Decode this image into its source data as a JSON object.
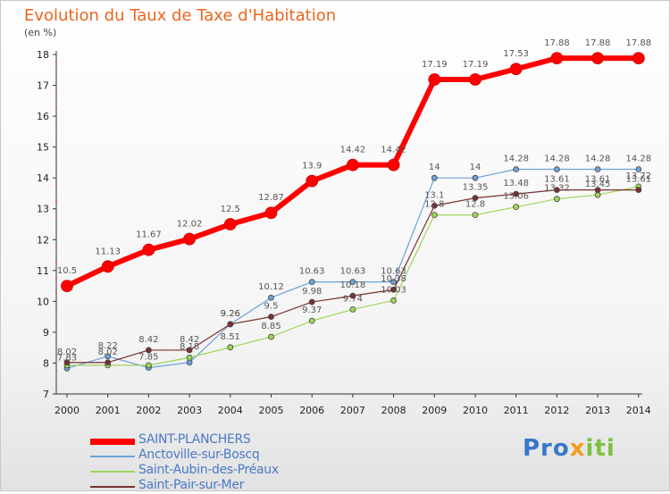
{
  "title": "Evolution du Taux de Taxe d'Habitation",
  "unit": "(en %)",
  "logo": {
    "p1": "Pro",
    "p2": "x",
    "p3": "iti"
  },
  "chart_data": {
    "type": "line",
    "x": [
      "2000",
      "2001",
      "2002",
      "2003",
      "2004",
      "2005",
      "2006",
      "2007",
      "2008",
      "2009",
      "2010",
      "2011",
      "2012",
      "2013",
      "2014"
    ],
    "ylim": [
      7,
      18
    ],
    "yticks": [
      "7",
      "8",
      "9",
      "10",
      "11",
      "12",
      "13",
      "14",
      "15",
      "16",
      "17",
      "18"
    ],
    "grid": false,
    "legend_position": "bottom-left",
    "series": [
      {
        "name": "SAINT-PLANCHERS",
        "color": "#ff0000",
        "width": 6,
        "marker": 6.5,
        "values": [
          10.5,
          11.13,
          11.67,
          12.02,
          12.5,
          12.87,
          13.9,
          14.42,
          14.42,
          17.19,
          17.19,
          17.53,
          17.88,
          17.88,
          17.88
        ],
        "labels": [
          "10.5",
          "11.13",
          "11.67",
          "12.02",
          "12.5",
          "12.87",
          "13.9",
          "14.42",
          "14.42",
          "17.19",
          "17.19",
          "17.53",
          "17.88",
          "17.88",
          "17.88"
        ]
      },
      {
        "name": "Anctoville-sur-Boscq",
        "color": "#6ea1d8",
        "width": 1.2,
        "marker": 3,
        "values": [
          7.83,
          8.22,
          7.85,
          8.02,
          9.26,
          10.12,
          10.63,
          10.63,
          10.63,
          14,
          14,
          14.28,
          14.28,
          14.28,
          14.28
        ],
        "labels": [
          "7.83",
          "8.22",
          "7.85",
          "",
          "9.26",
          "10.12",
          "10.63",
          "10.63",
          "10.63",
          "14",
          "14",
          "14.28",
          "14.28",
          "14.28",
          "14.28"
        ]
      },
      {
        "name": "Saint-Aubin-des-Préaux",
        "color": "#9ed65a",
        "width": 1.2,
        "marker": 3,
        "values": [
          7.93,
          7.93,
          7.93,
          8.18,
          8.51,
          8.85,
          9.37,
          9.74,
          10.03,
          12.8,
          12.8,
          13.06,
          13.32,
          13.45,
          13.72
        ],
        "labels": [
          "",
          "",
          "",
          "8.18",
          "8.51",
          "8.85",
          "9.37",
          "9.74",
          "10.03",
          "12.8",
          "12.8",
          "13.06",
          "13.32",
          "13.45",
          "13.72"
        ]
      },
      {
        "name": "Saint-Pair-sur-Mer",
        "color": "#7a3030",
        "width": 1.2,
        "marker": 3,
        "values": [
          8.02,
          8.02,
          8.42,
          8.42,
          9.26,
          9.5,
          9.98,
          10.18,
          10.38,
          13.1,
          13.35,
          13.48,
          13.61,
          13.61,
          13.61
        ],
        "labels": [
          "8.02",
          "8.02",
          "8.42",
          "8.42",
          "9.26",
          "9.5",
          "9.98",
          "10.18",
          "10.38",
          "13.1",
          "13.35",
          "13.48",
          "13.61",
          "13.61",
          "13.61"
        ]
      }
    ]
  }
}
